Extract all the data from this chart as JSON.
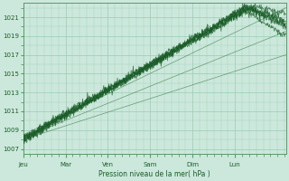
{
  "background_color": "#cce8dc",
  "plot_bg_color": "#cce8dc",
  "grid_color": "#99ccb3",
  "line_color_main": "#1a5c28",
  "line_color_thin": "#3a7a46",
  "xlabel_text": "Pression niveau de la mer( hPa )",
  "x_tick_labels": [
    "Jeu",
    "Mar",
    "Ven",
    "Sam",
    "Dim",
    "Lun"
  ],
  "x_tick_pos": [
    0,
    1,
    2,
    3,
    4,
    5
  ],
  "ylim": [
    1006.5,
    1022.5
  ],
  "yticks": [
    1007,
    1009,
    1011,
    1013,
    1015,
    1017,
    1019,
    1021
  ],
  "xlim": [
    0,
    6.2
  ],
  "n_days": 6
}
